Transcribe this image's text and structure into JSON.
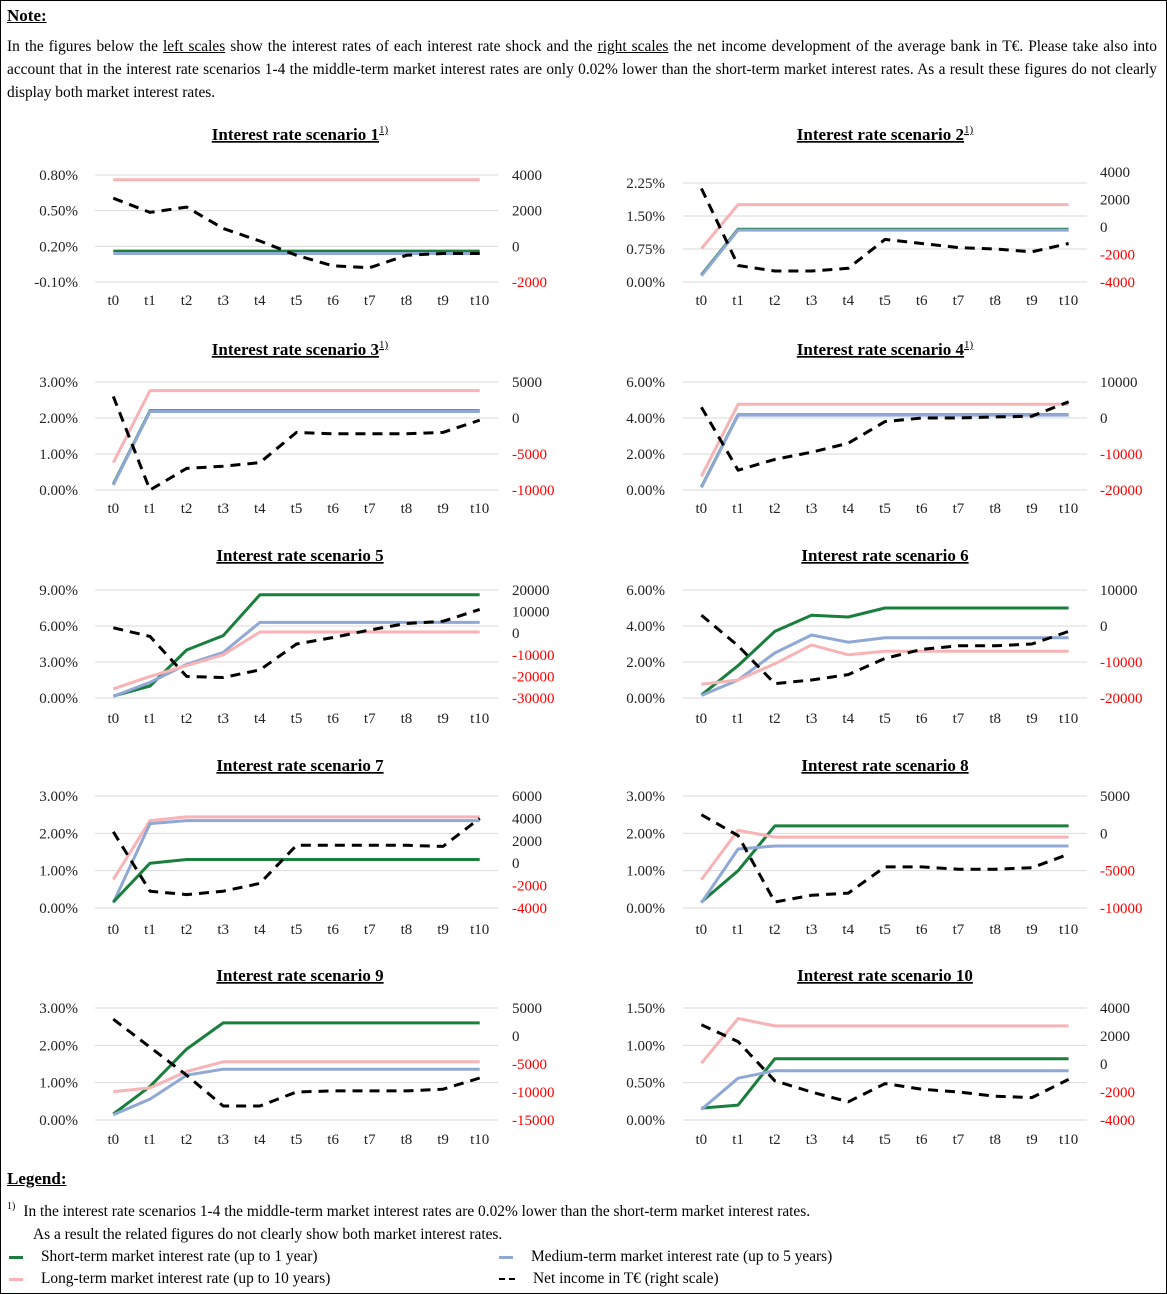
{
  "note": {
    "title": "Note:",
    "p1": "In the figures below the ",
    "u1": "left scales",
    "p2": " show the interest rates of each interest rate shock and the ",
    "u2": "right scales",
    "p3": " the net income development of the average bank in T€. Please take also into account that in the interest rate scenarios 1-4 the middle-term market interest rates are only 0.02% lower than the short-term market interest rates. As a result these figures do not clearly display both market interest rates."
  },
  "colors": {
    "short": "#1a7f3c",
    "medium": "#8fa8d6",
    "long": "#f7b3b6",
    "net": "#000000",
    "right_axis": "#ff0000"
  },
  "chart_data": [
    {
      "type": "line",
      "title": "Interest rate scenario 1",
      "footnote": "1)",
      "categories": [
        "t0",
        "t1",
        "t2",
        "t3",
        "t4",
        "t5",
        "t6",
        "t7",
        "t8",
        "t9",
        "t10"
      ],
      "left_ticks": [
        "0.80%",
        "0.50%",
        "0.20%",
        "-0.10%"
      ],
      "left_range": [
        -0.1,
        0.8
      ],
      "right_ticks": [
        "4000",
        "2000",
        "0",
        "-2000"
      ],
      "right_range": [
        -2000,
        4000
      ],
      "series": [
        {
          "key": "long",
          "axis": "left",
          "values": [
            0.76,
            0.76,
            0.76,
            0.76,
            0.76,
            0.76,
            0.76,
            0.76,
            0.76,
            0.76,
            0.76
          ]
        },
        {
          "key": "short",
          "axis": "left",
          "values": [
            0.16,
            0.16,
            0.16,
            0.16,
            0.16,
            0.16,
            0.16,
            0.16,
            0.16,
            0.16,
            0.16
          ]
        },
        {
          "key": "medium",
          "axis": "left",
          "values": [
            0.14,
            0.14,
            0.14,
            0.14,
            0.14,
            0.14,
            0.14,
            0.14,
            0.14,
            0.14,
            0.14
          ]
        },
        {
          "key": "net",
          "axis": "right",
          "values": [
            2700,
            1900,
            2200,
            1000,
            300,
            -500,
            -1100,
            -1200,
            -500,
            -400,
            -400
          ]
        }
      ]
    },
    {
      "type": "line",
      "title": "Interest rate scenario 2",
      "footnote": "1)",
      "categories": [
        "t0",
        "t1",
        "t2",
        "t3",
        "t4",
        "t5",
        "t6",
        "t7",
        "t8",
        "t9",
        "t10"
      ],
      "left_ticks": [
        "2.25%",
        "1.50%",
        "0.75%",
        "0.00%"
      ],
      "left_range": [
        0,
        2.5
      ],
      "right_ticks": [
        "4000",
        "2000",
        "0",
        "-2000",
        "-4000"
      ],
      "right_range": [
        -4000,
        4000
      ],
      "series": [
        {
          "key": "long",
          "axis": "left",
          "values": [
            0.76,
            1.76,
            1.76,
            1.76,
            1.76,
            1.76,
            1.76,
            1.76,
            1.76,
            1.76,
            1.76
          ]
        },
        {
          "key": "short",
          "axis": "left",
          "values": [
            0.16,
            1.2,
            1.2,
            1.2,
            1.2,
            1.2,
            1.2,
            1.2,
            1.2,
            1.2,
            1.2
          ]
        },
        {
          "key": "medium",
          "axis": "left",
          "values": [
            0.14,
            1.18,
            1.18,
            1.18,
            1.18,
            1.18,
            1.18,
            1.18,
            1.18,
            1.18,
            1.18
          ]
        },
        {
          "key": "net",
          "axis": "right",
          "values": [
            2800,
            -2800,
            -3200,
            -3200,
            -3000,
            -900,
            -1200,
            -1500,
            -1600,
            -1800,
            -1200
          ]
        }
      ]
    },
    {
      "type": "line",
      "title": "Interest rate scenario 3",
      "footnote": "1)",
      "categories": [
        "t0",
        "t1",
        "t2",
        "t3",
        "t4",
        "t5",
        "t6",
        "t7",
        "t8",
        "t9",
        "t10"
      ],
      "left_ticks": [
        "3.00%",
        "2.00%",
        "1.00%",
        "0.00%"
      ],
      "left_range": [
        0,
        3
      ],
      "right_ticks": [
        "5000",
        "0",
        "-5000",
        "-10000"
      ],
      "right_range": [
        -10000,
        5000
      ],
      "series": [
        {
          "key": "long",
          "axis": "left",
          "values": [
            0.76,
            2.76,
            2.76,
            2.76,
            2.76,
            2.76,
            2.76,
            2.76,
            2.76,
            2.76,
            2.76
          ]
        },
        {
          "key": "short",
          "axis": "left",
          "values": [
            0.16,
            2.2,
            2.2,
            2.2,
            2.2,
            2.2,
            2.2,
            2.2,
            2.2,
            2.2,
            2.2
          ]
        },
        {
          "key": "medium",
          "axis": "left",
          "values": [
            0.14,
            2.18,
            2.18,
            2.18,
            2.18,
            2.18,
            2.18,
            2.18,
            2.18,
            2.18,
            2.18
          ]
        },
        {
          "key": "net",
          "axis": "right",
          "values": [
            3000,
            -10000,
            -7000,
            -6700,
            -6200,
            -2000,
            -2200,
            -2200,
            -2200,
            -2000,
            -300
          ]
        }
      ]
    },
    {
      "type": "line",
      "title": "Interest rate scenario 4",
      "footnote": "1)",
      "categories": [
        "t0",
        "t1",
        "t2",
        "t3",
        "t4",
        "t5",
        "t6",
        "t7",
        "t8",
        "t9",
        "t10"
      ],
      "left_ticks": [
        "6.00%",
        "4.00%",
        "2.00%",
        "0.00%"
      ],
      "left_range": [
        0,
        6
      ],
      "right_ticks": [
        "10000",
        "0",
        "-10000",
        "-20000"
      ],
      "right_range": [
        -20000,
        10000
      ],
      "series": [
        {
          "key": "long",
          "axis": "left",
          "values": [
            0.76,
            4.76,
            4.76,
            4.76,
            4.76,
            4.76,
            4.76,
            4.76,
            4.76,
            4.76,
            4.76
          ]
        },
        {
          "key": "short",
          "axis": "left",
          "values": [
            0.16,
            4.18,
            4.18,
            4.18,
            4.18,
            4.18,
            4.18,
            4.18,
            4.18,
            4.18,
            4.18
          ]
        },
        {
          "key": "medium",
          "axis": "left",
          "values": [
            0.14,
            4.16,
            4.16,
            4.16,
            4.16,
            4.16,
            4.16,
            4.16,
            4.16,
            4.16,
            4.16
          ]
        },
        {
          "key": "net",
          "axis": "right",
          "values": [
            3000,
            -14500,
            -11500,
            -9500,
            -7000,
            -1000,
            0,
            0,
            300,
            500,
            4500
          ]
        }
      ]
    },
    {
      "type": "line",
      "title": "Interest rate scenario 5",
      "footnote": "",
      "categories": [
        "t0",
        "t1",
        "t2",
        "t3",
        "t4",
        "t5",
        "t6",
        "t7",
        "t8",
        "t9",
        "t10"
      ],
      "left_ticks": [
        "9.00%",
        "6.00%",
        "3.00%",
        "0.00%"
      ],
      "left_range": [
        0,
        9
      ],
      "right_ticks": [
        "20000",
        "10000",
        "0",
        "-10000",
        "-20000",
        "-30000"
      ],
      "right_range": [
        -30000,
        20000
      ],
      "series": [
        {
          "key": "short",
          "axis": "left",
          "values": [
            0.16,
            1.0,
            4.0,
            5.2,
            8.6,
            8.6,
            8.6,
            8.6,
            8.6,
            8.6,
            8.6
          ]
        },
        {
          "key": "medium",
          "axis": "left",
          "values": [
            0.14,
            1.3,
            2.8,
            3.8,
            6.3,
            6.3,
            6.3,
            6.3,
            6.3,
            6.3,
            6.3
          ]
        },
        {
          "key": "long",
          "axis": "left",
          "values": [
            0.76,
            1.8,
            2.7,
            3.6,
            5.5,
            5.5,
            5.5,
            5.5,
            5.5,
            5.5,
            5.5
          ]
        },
        {
          "key": "net",
          "axis": "right",
          "values": [
            2500,
            -1500,
            -20000,
            -20500,
            -17000,
            -5000,
            -2000,
            1500,
            4500,
            5500,
            11000
          ]
        }
      ]
    },
    {
      "type": "line",
      "title": "Interest rate scenario 6",
      "footnote": "",
      "categories": [
        "t0",
        "t1",
        "t2",
        "t3",
        "t4",
        "t5",
        "t6",
        "t7",
        "t8",
        "t9",
        "t10"
      ],
      "left_ticks": [
        "6.00%",
        "4.00%",
        "2.00%",
        "0.00%"
      ],
      "left_range": [
        0,
        6
      ],
      "right_ticks": [
        "10000",
        "0",
        "-10000",
        "-20000"
      ],
      "right_range": [
        -20000,
        10000
      ],
      "series": [
        {
          "key": "short",
          "axis": "left",
          "values": [
            0.16,
            1.8,
            3.7,
            4.6,
            4.5,
            5.0,
            5.0,
            5.0,
            5.0,
            5.0,
            5.0
          ]
        },
        {
          "key": "medium",
          "axis": "left",
          "values": [
            0.14,
            1.0,
            2.5,
            3.5,
            3.1,
            3.35,
            3.35,
            3.35,
            3.35,
            3.35,
            3.35
          ]
        },
        {
          "key": "long",
          "axis": "left",
          "values": [
            0.76,
            1.0,
            1.9,
            2.95,
            2.4,
            2.6,
            2.6,
            2.6,
            2.6,
            2.6,
            2.6
          ]
        },
        {
          "key": "net",
          "axis": "right",
          "values": [
            3000,
            -5500,
            -16000,
            -15000,
            -13500,
            -9000,
            -6500,
            -5500,
            -5500,
            -5000,
            -1500
          ]
        }
      ]
    },
    {
      "type": "line",
      "title": "Interest rate scenario 7",
      "footnote": "",
      "categories": [
        "t0",
        "t1",
        "t2",
        "t3",
        "t4",
        "t5",
        "t6",
        "t7",
        "t8",
        "t9",
        "t10"
      ],
      "left_ticks": [
        "3.00%",
        "2.00%",
        "1.00%",
        "0.00%"
      ],
      "left_range": [
        0,
        3
      ],
      "right_ticks": [
        "6000",
        "4000",
        "2000",
        "0",
        "-2000",
        "-4000"
      ],
      "right_range": [
        -4000,
        6000
      ],
      "series": [
        {
          "key": "long",
          "axis": "left",
          "values": [
            0.76,
            2.34,
            2.44,
            2.44,
            2.44,
            2.44,
            2.44,
            2.44,
            2.44,
            2.44,
            2.44
          ]
        },
        {
          "key": "medium",
          "axis": "left",
          "values": [
            0.14,
            2.26,
            2.34,
            2.34,
            2.34,
            2.34,
            2.34,
            2.34,
            2.34,
            2.34,
            2.34
          ]
        },
        {
          "key": "short",
          "axis": "left",
          "values": [
            0.16,
            1.2,
            1.3,
            1.3,
            1.3,
            1.3,
            1.3,
            1.3,
            1.3,
            1.3,
            1.3
          ]
        },
        {
          "key": "net",
          "axis": "right",
          "values": [
            2800,
            -2500,
            -2800,
            -2500,
            -1800,
            1600,
            1600,
            1600,
            1600,
            1500,
            4000
          ]
        }
      ]
    },
    {
      "type": "line",
      "title": "Interest rate scenario 8",
      "footnote": "",
      "categories": [
        "t0",
        "t1",
        "t2",
        "t3",
        "t4",
        "t5",
        "t6",
        "t7",
        "t8",
        "t9",
        "t10"
      ],
      "left_ticks": [
        "3.00%",
        "2.00%",
        "1.00%",
        "0.00%"
      ],
      "left_range": [
        0,
        3
      ],
      "right_ticks": [
        "5000",
        "0",
        "-5000",
        "-10000"
      ],
      "right_range": [
        -10000,
        5000
      ],
      "series": [
        {
          "key": "short",
          "axis": "left",
          "values": [
            0.16,
            1.0,
            2.2,
            2.2,
            2.2,
            2.2,
            2.2,
            2.2,
            2.2,
            2.2,
            2.2
          ]
        },
        {
          "key": "long",
          "axis": "left",
          "values": [
            0.76,
            2.08,
            1.9,
            1.9,
            1.9,
            1.9,
            1.9,
            1.9,
            1.9,
            1.9,
            1.9
          ]
        },
        {
          "key": "medium",
          "axis": "left",
          "values": [
            0.14,
            1.58,
            1.66,
            1.66,
            1.66,
            1.66,
            1.66,
            1.66,
            1.66,
            1.66,
            1.66
          ]
        },
        {
          "key": "net",
          "axis": "right",
          "values": [
            2500,
            -300,
            -9200,
            -8300,
            -8000,
            -4500,
            -4500,
            -4800,
            -4800,
            -4600,
            -2800
          ]
        }
      ]
    },
    {
      "type": "line",
      "title": "Interest rate scenario 9",
      "footnote": "",
      "categories": [
        "t0",
        "t1",
        "t2",
        "t3",
        "t4",
        "t5",
        "t6",
        "t7",
        "t8",
        "t9",
        "t10"
      ],
      "left_ticks": [
        "3.00%",
        "2.00%",
        "1.00%",
        "0.00%"
      ],
      "left_range": [
        0,
        3
      ],
      "right_ticks": [
        "5000",
        "0",
        "-5000",
        "-10000",
        "-15000"
      ],
      "right_range": [
        -15000,
        5000
      ],
      "series": [
        {
          "key": "short",
          "axis": "left",
          "values": [
            0.16,
            0.9,
            1.9,
            2.6,
            2.6,
            2.6,
            2.6,
            2.6,
            2.6,
            2.6,
            2.6
          ]
        },
        {
          "key": "long",
          "axis": "left",
          "values": [
            0.76,
            0.86,
            1.3,
            1.56,
            1.56,
            1.56,
            1.56,
            1.56,
            1.56,
            1.56,
            1.56
          ]
        },
        {
          "key": "medium",
          "axis": "left",
          "values": [
            0.14,
            0.56,
            1.2,
            1.36,
            1.36,
            1.36,
            1.36,
            1.36,
            1.36,
            1.36,
            1.36
          ]
        },
        {
          "key": "net",
          "axis": "right",
          "values": [
            3000,
            -2000,
            -7000,
            -12500,
            -12500,
            -10000,
            -9800,
            -9800,
            -9800,
            -9500,
            -7500
          ]
        }
      ]
    },
    {
      "type": "line",
      "title": "Interest rate scenario 10",
      "footnote": "",
      "categories": [
        "t0",
        "t1",
        "t2",
        "t3",
        "t4",
        "t5",
        "t6",
        "t7",
        "t8",
        "t9",
        "t10"
      ],
      "left_ticks": [
        "1.50%",
        "1.00%",
        "0.50%",
        "0.00%"
      ],
      "left_range": [
        0,
        1.5
      ],
      "right_ticks": [
        "4000",
        "2000",
        "0",
        "-2000",
        "-4000"
      ],
      "right_range": [
        -4000,
        4000
      ],
      "series": [
        {
          "key": "long",
          "axis": "left",
          "values": [
            0.76,
            1.36,
            1.26,
            1.26,
            1.26,
            1.26,
            1.26,
            1.26,
            1.26,
            1.26,
            1.26
          ]
        },
        {
          "key": "short",
          "axis": "left",
          "values": [
            0.16,
            0.2,
            0.82,
            0.82,
            0.82,
            0.82,
            0.82,
            0.82,
            0.82,
            0.82,
            0.82
          ]
        },
        {
          "key": "medium",
          "axis": "left",
          "values": [
            0.14,
            0.56,
            0.66,
            0.66,
            0.66,
            0.66,
            0.66,
            0.66,
            0.66,
            0.66,
            0.66
          ]
        },
        {
          "key": "net",
          "axis": "right",
          "values": [
            2800,
            1600,
            -1200,
            -2000,
            -2700,
            -1400,
            -1800,
            -2000,
            -2300,
            -2400,
            -1100
          ]
        }
      ]
    }
  ],
  "legend": {
    "title": "Legend:",
    "footnote_mark": "1)",
    "footnote_line1": "In the interest rate scenarios 1-4 the middle-term market interest rates are 0.02% lower than the short-term market interest rates.",
    "footnote_line2": "As a result the related figures do not clearly show both market interest rates.",
    "short": "Short-term market interest rate (up to 1 year)",
    "medium": "Medium-term market interest rate  (up to 5 years)",
    "long": "Long-term market interest rate (up to 10 years)",
    "net": "Net income in T€ (right scale)"
  }
}
